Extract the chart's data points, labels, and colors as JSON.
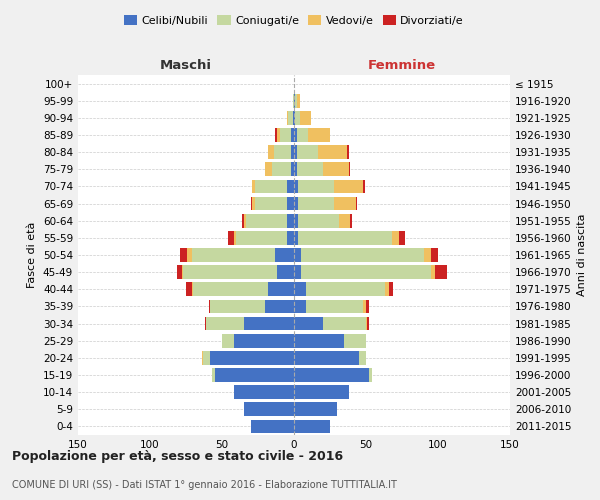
{
  "age_groups": [
    "0-4",
    "5-9",
    "10-14",
    "15-19",
    "20-24",
    "25-29",
    "30-34",
    "35-39",
    "40-44",
    "45-49",
    "50-54",
    "55-59",
    "60-64",
    "65-69",
    "70-74",
    "75-79",
    "80-84",
    "85-89",
    "90-94",
    "95-99",
    "100+"
  ],
  "birth_years": [
    "2011-2015",
    "2006-2010",
    "2001-2005",
    "1996-2000",
    "1991-1995",
    "1986-1990",
    "1981-1985",
    "1976-1980",
    "1971-1975",
    "1966-1970",
    "1961-1965",
    "1956-1960",
    "1951-1955",
    "1946-1950",
    "1941-1945",
    "1936-1940",
    "1931-1935",
    "1926-1930",
    "1921-1925",
    "1916-1920",
    "≤ 1915"
  ],
  "male": {
    "celibe": [
      30,
      35,
      42,
      55,
      58,
      42,
      35,
      20,
      18,
      12,
      13,
      5,
      5,
      5,
      5,
      2,
      2,
      2,
      1,
      0,
      0
    ],
    "coniugato": [
      0,
      0,
      0,
      2,
      5,
      8,
      26,
      38,
      52,
      65,
      58,
      35,
      28,
      22,
      22,
      13,
      12,
      8,
      3,
      1,
      0
    ],
    "vedovo": [
      0,
      0,
      0,
      0,
      1,
      0,
      0,
      0,
      1,
      1,
      3,
      2,
      2,
      2,
      2,
      5,
      4,
      2,
      1,
      0,
      0
    ],
    "divorziato": [
      0,
      0,
      0,
      0,
      0,
      0,
      1,
      1,
      4,
      3,
      5,
      4,
      1,
      1,
      0,
      0,
      0,
      1,
      0,
      0,
      0
    ]
  },
  "female": {
    "nubile": [
      25,
      30,
      38,
      52,
      45,
      35,
      20,
      8,
      8,
      5,
      5,
      3,
      3,
      3,
      3,
      2,
      2,
      2,
      1,
      1,
      0
    ],
    "coniugata": [
      0,
      0,
      0,
      2,
      5,
      15,
      30,
      40,
      55,
      90,
      85,
      65,
      28,
      25,
      25,
      18,
      15,
      8,
      3,
      1,
      0
    ],
    "vedova": [
      0,
      0,
      0,
      0,
      0,
      0,
      1,
      2,
      3,
      3,
      5,
      5,
      8,
      15,
      20,
      18,
      20,
      15,
      8,
      2,
      0
    ],
    "divorziata": [
      0,
      0,
      0,
      0,
      0,
      0,
      1,
      2,
      3,
      8,
      5,
      4,
      1,
      1,
      1,
      1,
      1,
      0,
      0,
      0,
      0
    ]
  },
  "colors": {
    "celibe": "#4472c4",
    "coniugato": "#c5d8a0",
    "vedovo": "#f0c060",
    "divorziato": "#cc2222"
  },
  "xlim": 150,
  "title": "Popolazione per età, sesso e stato civile - 2016",
  "subtitle": "COMUNE DI URI (SS) - Dati ISTAT 1° gennaio 2016 - Elaborazione TUTTITALIA.IT",
  "ylabel_left": "Fasce di età",
  "ylabel_right": "Anni di nascita",
  "xlabel_left": "Maschi",
  "xlabel_right": "Femmine",
  "bg_color": "#f0f0f0",
  "plot_bg_color": "#ffffff"
}
